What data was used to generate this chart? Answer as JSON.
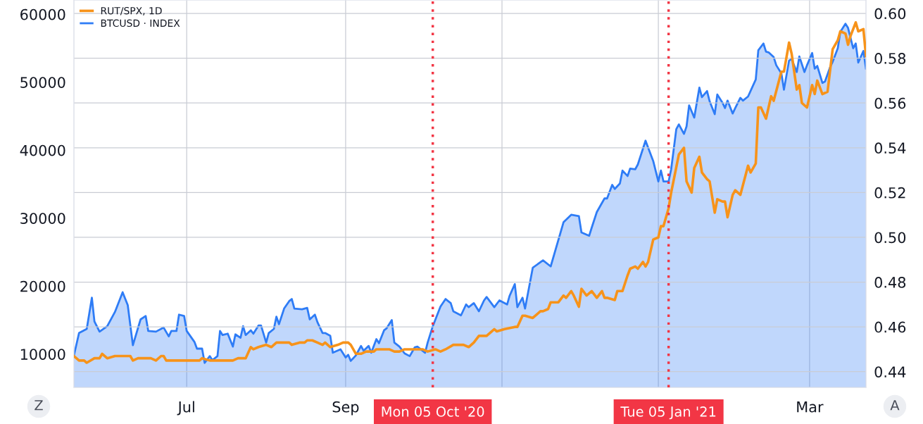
{
  "chart_data": {
    "type": "line",
    "xlim": [
      "2020-05-18",
      "2021-03-23"
    ],
    "xticks": [
      {
        "value": "2020-07-01",
        "label": "Jul"
      },
      {
        "value": "2020-09-01",
        "label": "Sep"
      },
      {
        "value": "2020-11-01",
        "label": null
      },
      {
        "value": "2021-01-01",
        "label": null
      },
      {
        "value": "2021-03-01",
        "label": "Mar"
      }
    ],
    "ylim": [
      5100,
      62100
    ],
    "yticks": [
      10000,
      20000,
      30000,
      40000,
      50000,
      60000
    ],
    "y2lim": [
      0.433,
      0.606
    ],
    "y2ticks": [
      {
        "value": 0.44,
        "label": "0.44"
      },
      {
        "value": 0.46,
        "label": "0.46"
      },
      {
        "value": 0.48,
        "label": "0.48"
      },
      {
        "value": 0.5,
        "label": "0.50"
      },
      {
        "value": 0.52,
        "label": "0.52"
      },
      {
        "value": 0.54,
        "label": "0.54"
      },
      {
        "value": 0.56,
        "label": "0.56"
      },
      {
        "value": 0.58,
        "label": "0.58"
      },
      {
        "value": 0.6,
        "label": "0.60"
      }
    ],
    "grid": true,
    "legend": "top left",
    "series": [
      {
        "name": "RUT/SPX, 1D",
        "axis": "y2",
        "color": "#f7931a",
        "x": [
          "2020-05-18",
          "2020-05-20",
          "2020-05-22",
          "2020-05-23",
          "2020-05-26",
          "2020-05-28",
          "2020-05-29",
          "2020-05-31",
          "2020-06-03",
          "2020-06-05",
          "2020-06-07",
          "2020-06-09",
          "2020-06-10",
          "2020-06-12",
          "2020-06-15",
          "2020-06-17",
          "2020-06-19",
          "2020-06-21",
          "2020-06-22",
          "2020-06-23",
          "2020-06-27",
          "2020-06-30",
          "2020-07-03",
          "2020-07-04",
          "2020-07-06",
          "2020-07-07",
          "2020-07-10",
          "2020-07-14",
          "2020-07-19",
          "2020-07-21",
          "2020-07-24",
          "2020-07-26",
          "2020-07-27",
          "2020-07-29",
          "2020-08-01",
          "2020-08-03",
          "2020-08-05",
          "2020-08-07",
          "2020-08-09",
          "2020-08-10",
          "2020-08-11",
          "2020-08-14",
          "2020-08-16",
          "2020-08-17",
          "2020-08-19",
          "2020-08-21",
          "2020-08-23",
          "2020-08-24",
          "2020-08-26",
          "2020-08-29",
          "2020-08-31",
          "2020-09-02",
          "2020-09-03",
          "2020-09-05",
          "2020-09-07",
          "2020-09-09",
          "2020-09-12",
          "2020-09-13",
          "2020-09-16",
          "2020-09-18",
          "2020-09-20",
          "2020-09-22",
          "2020-09-24",
          "2020-10-01",
          "2020-10-03",
          "2020-10-06",
          "2020-10-08",
          "2020-10-10",
          "2020-10-13",
          "2020-10-17",
          "2020-10-19",
          "2020-10-21",
          "2020-10-23",
          "2020-10-26",
          "2020-10-29",
          "2020-10-30",
          "2020-11-02",
          "2020-11-06",
          "2020-11-07",
          "2020-11-09",
          "2020-11-10",
          "2020-11-13",
          "2020-11-16",
          "2020-11-17",
          "2020-11-19",
          "2020-11-20",
          "2020-11-23",
          "2020-11-25",
          "2020-11-26",
          "2020-11-28",
          "2020-11-29",
          "2020-12-01",
          "2020-12-02",
          "2020-12-04",
          "2020-12-06",
          "2020-12-08",
          "2020-12-10",
          "2020-12-11",
          "2020-12-12",
          "2020-12-15",
          "2020-12-16",
          "2020-12-18",
          "2020-12-20",
          "2020-12-21",
          "2020-12-23",
          "2020-12-24",
          "2020-12-26",
          "2020-12-27",
          "2020-12-28",
          "2020-12-30",
          "2021-01-01",
          "2021-01-02",
          "2021-01-03",
          "2021-01-05",
          "2021-01-06",
          "2021-01-09",
          "2021-01-11",
          "2021-01-12",
          "2021-01-14",
          "2021-01-15",
          "2021-01-17",
          "2021-01-18",
          "2021-01-20",
          "2021-01-21",
          "2021-01-23",
          "2021-01-24",
          "2021-01-26",
          "2021-01-27",
          "2021-01-28",
          "2021-01-30",
          "2021-01-31",
          "2021-02-02",
          "2021-02-05",
          "2021-02-06",
          "2021-02-08",
          "2021-02-09",
          "2021-02-10",
          "2021-02-12",
          "2021-02-14",
          "2021-02-15",
          "2021-02-18",
          "2021-02-19",
          "2021-02-21",
          "2021-02-22",
          "2021-02-24",
          "2021-02-25",
          "2021-02-26",
          "2021-02-28",
          "2021-03-02",
          "2021-03-03",
          "2021-03-04",
          "2021-03-06",
          "2021-03-08",
          "2021-03-10",
          "2021-03-12",
          "2021-03-13",
          "2021-03-15",
          "2021-03-16",
          "2021-03-17",
          "2021-03-19",
          "2021-03-20",
          "2021-03-22",
          "2021-03-23"
        ],
        "values": [
          0.447,
          0.445,
          0.445,
          0.444,
          0.446,
          0.446,
          0.448,
          0.446,
          0.447,
          0.447,
          0.447,
          0.447,
          0.445,
          0.446,
          0.446,
          0.446,
          0.445,
          0.447,
          0.447,
          0.445,
          0.445,
          0.445,
          0.445,
          0.445,
          0.445,
          0.446,
          0.445,
          0.445,
          0.445,
          0.446,
          0.446,
          0.451,
          0.45,
          0.451,
          0.452,
          0.451,
          0.453,
          0.453,
          0.453,
          0.453,
          0.452,
          0.453,
          0.453,
          0.454,
          0.454,
          0.453,
          0.452,
          0.453,
          0.451,
          0.452,
          0.453,
          0.453,
          0.452,
          0.448,
          0.448,
          0.449,
          0.449,
          0.45,
          0.45,
          0.45,
          0.449,
          0.449,
          0.45,
          0.45,
          0.449,
          0.45,
          0.449,
          0.45,
          0.452,
          0.452,
          0.451,
          0.453,
          0.456,
          0.456,
          0.459,
          0.458,
          0.459,
          0.46,
          0.46,
          0.465,
          0.465,
          0.464,
          0.467,
          0.467,
          0.468,
          0.471,
          0.471,
          0.474,
          0.473,
          0.476,
          0.474,
          0.469,
          0.477,
          0.474,
          0.476,
          0.473,
          0.476,
          0.473,
          0.473,
          0.472,
          0.476,
          0.476,
          0.483,
          0.486,
          0.487,
          0.486,
          0.489,
          0.487,
          0.489,
          0.499,
          0.5,
          0.505,
          0.505,
          0.513,
          0.52,
          0.537,
          0.54,
          0.525,
          0.52,
          0.531,
          0.536,
          0.529,
          0.526,
          0.525,
          0.511,
          0.517,
          0.516,
          0.516,
          0.509,
          0.519,
          0.521,
          0.519,
          0.532,
          0.529,
          0.533,
          0.558,
          0.558,
          0.553,
          0.563,
          0.561,
          0.574,
          0.574,
          0.587,
          0.582,
          0.566,
          0.568,
          0.56,
          0.558,
          0.568,
          0.564,
          0.57,
          0.564,
          0.565,
          0.584,
          0.588,
          0.592,
          0.591,
          0.586,
          0.59,
          0.596,
          0.592,
          0.593,
          0.581
        ]
      },
      {
        "name": "BTCUSD · INDEX",
        "type": "area",
        "color": "#2e7cf6",
        "x": [
          "2020-05-18",
          "2020-05-20",
          "2020-05-23",
          "2020-05-25",
          "2020-05-26",
          "2020-05-28",
          "2020-05-31",
          "2020-06-03",
          "2020-06-06",
          "2020-06-08",
          "2020-06-10",
          "2020-06-13",
          "2020-06-15",
          "2020-06-16",
          "2020-06-19",
          "2020-06-22",
          "2020-06-24",
          "2020-06-25",
          "2020-06-27",
          "2020-06-28",
          "2020-06-30",
          "2020-07-01",
          "2020-07-04",
          "2020-07-05",
          "2020-07-07",
          "2020-07-08",
          "2020-07-10",
          "2020-07-11",
          "2020-07-13",
          "2020-07-14",
          "2020-07-15",
          "2020-07-17",
          "2020-07-19",
          "2020-07-20",
          "2020-07-22",
          "2020-07-23",
          "2020-07-24",
          "2020-07-26",
          "2020-07-27",
          "2020-07-29",
          "2020-07-30",
          "2020-08-01",
          "2020-08-02",
          "2020-08-04",
          "2020-08-05",
          "2020-08-06",
          "2020-08-08",
          "2020-08-10",
          "2020-08-11",
          "2020-08-12",
          "2020-08-15",
          "2020-08-17",
          "2020-08-18",
          "2020-08-20",
          "2020-08-21",
          "2020-08-23",
          "2020-08-24",
          "2020-08-26",
          "2020-08-27",
          "2020-08-30",
          "2020-09-01",
          "2020-09-02",
          "2020-09-03",
          "2020-09-05",
          "2020-09-07",
          "2020-09-08",
          "2020-09-10",
          "2020-09-11",
          "2020-09-13",
          "2020-09-14",
          "2020-09-16",
          "2020-09-17",
          "2020-09-19",
          "2020-09-20",
          "2020-09-22",
          "2020-09-24",
          "2020-09-26",
          "2020-09-28",
          "2020-09-29",
          "2020-10-02",
          "2020-10-03",
          "2020-10-05",
          "2020-10-08",
          "2020-10-10",
          "2020-10-12",
          "2020-10-13",
          "2020-10-16",
          "2020-10-18",
          "2020-10-19",
          "2020-10-21",
          "2020-10-23",
          "2020-10-25",
          "2020-10-26",
          "2020-10-29",
          "2020-10-31",
          "2020-11-03",
          "2020-11-04",
          "2020-11-06",
          "2020-11-07",
          "2020-11-09",
          "2020-11-10",
          "2020-11-13",
          "2020-11-17",
          "2020-11-20",
          "2020-11-25",
          "2020-11-28",
          "2020-12-01",
          "2020-12-02",
          "2020-12-05",
          "2020-12-06",
          "2020-12-08",
          "2020-12-11",
          "2020-12-12",
          "2020-12-14",
          "2020-12-15",
          "2020-12-17",
          "2020-12-18",
          "2020-12-20",
          "2020-12-21",
          "2020-12-23",
          "2020-12-24",
          "2020-12-27",
          "2020-12-28",
          "2020-12-30",
          "2021-01-01",
          "2021-01-02",
          "2021-01-03",
          "2021-01-05",
          "2021-01-06",
          "2021-01-08",
          "2021-01-09",
          "2021-01-11",
          "2021-01-12",
          "2021-01-13",
          "2021-01-15",
          "2021-01-17",
          "2021-01-18",
          "2021-01-20",
          "2021-01-21",
          "2021-01-23",
          "2021-01-24",
          "2021-01-26",
          "2021-01-27",
          "2021-01-28",
          "2021-01-30",
          "2021-01-31",
          "2021-02-02",
          "2021-02-03",
          "2021-02-05",
          "2021-02-08",
          "2021-02-09",
          "2021-02-11",
          "2021-02-12",
          "2021-02-13",
          "2021-02-15",
          "2021-02-16",
          "2021-02-18",
          "2021-02-19",
          "2021-02-21",
          "2021-02-22",
          "2021-02-24",
          "2021-02-25",
          "2021-02-27",
          "2021-02-28",
          "2021-03-02",
          "2021-03-03",
          "2021-03-04",
          "2021-03-06",
          "2021-03-07",
          "2021-03-09",
          "2021-03-10",
          "2021-03-12",
          "2021-03-13",
          "2021-03-15",
          "2021-03-16",
          "2021-03-18",
          "2021-03-19",
          "2021-03-20",
          "2021-03-22",
          "2021-03-23"
        ],
        "values": [
          9800,
          13100,
          13700,
          18300,
          14800,
          13300,
          14100,
          16200,
          19100,
          17200,
          11300,
          15100,
          15600,
          13400,
          13300,
          13900,
          12600,
          13400,
          13400,
          15800,
          15600,
          13400,
          11800,
          10800,
          10800,
          8700,
          9700,
          9100,
          9700,
          13400,
          12800,
          13000,
          11100,
          12900,
          12400,
          14100,
          12800,
          13500,
          13000,
          14200,
          14200,
          11700,
          13100,
          13700,
          15500,
          14400,
          16700,
          17800,
          18100,
          16700,
          16600,
          16800,
          15100,
          15800,
          14700,
          13100,
          13100,
          12700,
          10200,
          10700,
          9500,
          9900,
          9000,
          9800,
          11200,
          10500,
          11200,
          10200,
          12200,
          11600,
          13500,
          13800,
          15000,
          11700,
          11100,
          10100,
          9700,
          11000,
          11100,
          10200,
          11700,
          14100,
          17000,
          18100,
          17500,
          16300,
          15700,
          17300,
          16900,
          17500,
          16300,
          17900,
          18400,
          16900,
          17900,
          17300,
          18600,
          20300,
          16900,
          18300,
          16700,
          22700,
          23800,
          22900,
          29400,
          30500,
          30300,
          27900,
          27400,
          28600,
          30900,
          32900,
          32900,
          34900,
          34300,
          35100,
          37000,
          36200,
          37300,
          37200,
          37900,
          41400,
          40400,
          38400,
          35400,
          37000,
          35400,
          35400,
          37200,
          43100,
          43800,
          42400,
          43500,
          46600,
          44800,
          49200,
          47800,
          48700,
          47200,
          45300,
          48200,
          47000,
          46200,
          47300,
          45400,
          46200,
          47700,
          47300,
          47900,
          50400,
          54700,
          55700,
          54500,
          54400,
          53700,
          52500,
          51300,
          48900,
          53200,
          53400,
          51500,
          53800,
          51500,
          52500,
          54300,
          52000,
          52400,
          49900,
          50100,
          52200,
          53000,
          55000,
          57400,
          58600,
          58000,
          55000,
          55700,
          52900,
          54600,
          52000
        ]
      }
    ],
    "ref_lines": [
      {
        "axis": "x",
        "value": "2020-10-05",
        "label": "Mon 05 Oct '20",
        "color": "#f23645",
        "line_style": "dotted"
      },
      {
        "axis": "x",
        "value": "2021-01-05",
        "label": "Tue 05 Jan '21",
        "color": "#f23645",
        "line_style": "dotted"
      }
    ],
    "annotations": [
      "Z",
      "A"
    ]
  }
}
